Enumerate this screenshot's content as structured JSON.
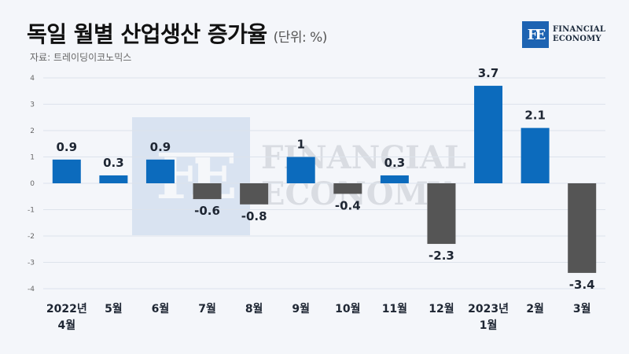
{
  "header": {
    "title": "독일 월별 산업생산 증가율",
    "unit": "(단위: %)",
    "source": "자료: 트레이딩이코노믹스"
  },
  "logo": {
    "mark": "FE",
    "line1": "FINANCIAL",
    "line2": "ECONOMY"
  },
  "watermark": {
    "mark": "FE",
    "line1": "FINANCIAL",
    "line2": "ECONOMY"
  },
  "colors": {
    "positive": "#0c6bbd",
    "negative": "#555555",
    "grid": "#dde3ec"
  },
  "chart_data": {
    "type": "bar",
    "categories": [
      [
        "2022년",
        "4월"
      ],
      [
        "5월"
      ],
      [
        "6월"
      ],
      [
        "7월"
      ],
      [
        "8월"
      ],
      [
        "9월"
      ],
      [
        "10월"
      ],
      [
        "11월"
      ],
      [
        "12월"
      ],
      [
        "2023년",
        "1월"
      ],
      [
        "2월"
      ],
      [
        "3월"
      ]
    ],
    "values": [
      0.9,
      0.3,
      0.9,
      -0.6,
      -0.8,
      1,
      -0.4,
      0.3,
      -2.3,
      3.7,
      2.1,
      -3.4
    ],
    "value_labels": [
      "0.9",
      "0.3",
      "0.9",
      "-0.6",
      "-0.8",
      "1",
      "-0.4",
      "0.3",
      "-2.3",
      "3.7",
      "2.1",
      "-3.4"
    ],
    "yticks": [
      4,
      3,
      2,
      1,
      0,
      -1,
      -2,
      -3,
      -4
    ],
    "ytick_labels": [
      "4",
      "3",
      "2",
      "1",
      "0",
      "-1",
      "-2",
      "-3",
      "-4"
    ],
    "ylim": [
      -4,
      4
    ],
    "grid": true
  }
}
